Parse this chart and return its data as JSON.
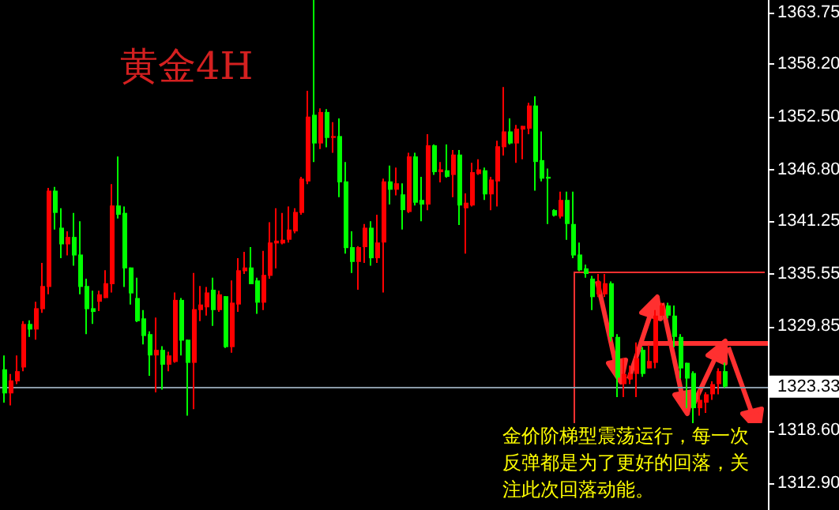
{
  "chart_data": {
    "type": "candlestick",
    "title": "黄金4H",
    "categories": [
      null,
      null,
      null,
      null,
      null,
      null,
      null,
      null,
      null,
      null,
      null,
      null,
      null,
      null,
      null,
      null,
      null,
      null,
      null,
      null,
      null,
      null,
      null,
      null,
      null,
      null,
      null,
      null,
      null,
      null,
      null,
      null,
      null,
      null,
      null,
      null,
      null,
      null,
      null,
      null,
      null,
      null,
      null,
      null,
      null,
      null,
      null,
      null,
      null,
      null,
      null,
      null,
      null,
      null,
      null,
      null,
      null,
      null,
      null,
      null,
      null,
      null,
      null,
      null,
      null,
      null,
      null,
      null,
      null,
      null,
      null,
      null,
      null,
      null,
      null,
      null,
      null,
      null,
      null,
      null,
      null,
      null,
      null,
      null,
      null,
      null,
      null,
      null,
      null,
      null,
      null,
      null,
      null,
      null,
      null,
      null,
      null,
      null,
      null,
      null,
      null,
      null,
      null,
      null,
      null,
      null,
      null,
      null,
      null,
      null,
      null,
      null,
      null,
      null,
      null
    ],
    "ohlc": [
      [
        1325.2,
        1326.7,
        1321.6,
        1322.6
      ],
      [
        1322.6,
        1324.7,
        1321.3,
        1324.0
      ],
      [
        1323.9,
        1326.7,
        1323.6,
        1325.0
      ],
      [
        1325.4,
        1330.4,
        1325.0,
        1330.1
      ],
      [
        1330.1,
        1330.5,
        1328.7,
        1329.5
      ],
      [
        1329.5,
        1332.5,
        1328.4,
        1331.8
      ],
      [
        1331.7,
        1336.7,
        1331.3,
        1334.2
      ],
      [
        1334.1,
        1344.8,
        1333.3,
        1344.5
      ],
      [
        1344.5,
        1344.9,
        1340.3,
        1342.1
      ],
      [
        1340.5,
        1342.6,
        1337.2,
        1338.7
      ],
      [
        1338.7,
        1340.1,
        1337.5,
        1339.5
      ],
      [
        1339.5,
        1342.1,
        1336.4,
        1337.5
      ],
      [
        1337.6,
        1341.2,
        1333.3,
        1334.1
      ],
      [
        1334.2,
        1335.0,
        1329.0,
        1331.7
      ],
      [
        1331.8,
        1333.7,
        1330.1,
        1331.4
      ],
      [
        1332.5,
        1333.7,
        1331.5,
        1333.3
      ],
      [
        1332.9,
        1335.9,
        1332.9,
        1334.5
      ],
      [
        1334.4,
        1345.2,
        1333.5,
        1342.9
      ],
      [
        1342.9,
        1348.2,
        1341.5,
        1341.9
      ],
      [
        1342.1,
        1342.8,
        1334.1,
        1336.1
      ],
      [
        1336.2,
        1336.2,
        1332.2,
        1333.4
      ],
      [
        1332.9,
        1335.1,
        1330.3,
        1330.4
      ],
      [
        1330.7,
        1331.6,
        1327.9,
        1328.8
      ],
      [
        1329.0,
        1329.3,
        1324.5,
        1326.7
      ],
      [
        1326.7,
        1330.8,
        1322.7,
        1327.3
      ],
      [
        1327.3,
        1327.7,
        1323.0,
        1325.7
      ],
      [
        1325.7,
        1327.1,
        1325.0,
        1326.7
      ],
      [
        1326.0,
        1333.5,
        1325.9,
        1332.7
      ],
      [
        1332.7,
        1332.9,
        1326.7,
        1328.3
      ],
      [
        1328.4,
        1328.4,
        1320.2,
        1325.9
      ],
      [
        1325.9,
        1335.6,
        1320.9,
        1331.7
      ],
      [
        1331.6,
        1334.2,
        1330.4,
        1332.2
      ],
      [
        1331.9,
        1334.1,
        1331.0,
        1333.5
      ],
      [
        1333.8,
        1335.1,
        1329.9,
        1331.6
      ],
      [
        1331.6,
        1333.7,
        1331.4,
        1333.3
      ],
      [
        1333.1,
        1333.1,
        1327.5,
        1327.6
      ],
      [
        1327.6,
        1334.8,
        1327.0,
        1332.4
      ],
      [
        1332.2,
        1337.2,
        1331.4,
        1335.9
      ],
      [
        1335.8,
        1337.9,
        1335.5,
        1336.2
      ],
      [
        1336.2,
        1338.4,
        1334.4,
        1334.4
      ],
      [
        1334.8,
        1335.1,
        1331.2,
        1332.4
      ],
      [
        1332.4,
        1338.0,
        1331.6,
        1335.4
      ],
      [
        1335.3,
        1341.1,
        1335.0,
        1338.9
      ],
      [
        1338.8,
        1342.6,
        1336.1,
        1339.1
      ],
      [
        1338.8,
        1342.1,
        1338.7,
        1339.2
      ],
      [
        1339.2,
        1342.8,
        1338.9,
        1340.3
      ],
      [
        1340.1,
        1342.6,
        1339.9,
        1342.2
      ],
      [
        1342.1,
        1346.0,
        1341.9,
        1345.8
      ],
      [
        1345.5,
        1355.3,
        1345.2,
        1352.5
      ],
      [
        1352.7,
        1365.1,
        1347.6,
        1349.6
      ],
      [
        1349.6,
        1353.4,
        1349.0,
        1353.0
      ],
      [
        1353.0,
        1353.3,
        1349.2,
        1350.2
      ],
      [
        1350.2,
        1351.9,
        1348.6,
        1350.4
      ],
      [
        1350.4,
        1352.3,
        1343.8,
        1345.4
      ],
      [
        1345.5,
        1347.6,
        1337.7,
        1338.3
      ],
      [
        1338.4,
        1340.1,
        1335.6,
        1336.8
      ],
      [
        1336.8,
        1338.5,
        1333.8,
        1338.4
      ],
      [
        1338.4,
        1340.9,
        1336.7,
        1340.5
      ],
      [
        1340.5,
        1341.2,
        1336.4,
        1337.2
      ],
      [
        1337.2,
        1341.9,
        1336.7,
        1338.9
      ],
      [
        1338.9,
        1345.8,
        1333.5,
        1345.5
      ],
      [
        1345.5,
        1347.2,
        1343.0,
        1344.6
      ],
      [
        1344.6,
        1347.0,
        1344.0,
        1345.3
      ],
      [
        1344.1,
        1345.3,
        1340.3,
        1342.4
      ],
      [
        1342.2,
        1348.6,
        1342.1,
        1348.2
      ],
      [
        1348.2,
        1348.6,
        1342.9,
        1343.2
      ],
      [
        1343.5,
        1346.0,
        1341.2,
        1343.0
      ],
      [
        1343.0,
        1350.6,
        1342.4,
        1349.4
      ],
      [
        1349.4,
        1349.5,
        1346.2,
        1346.5
      ],
      [
        1346.5,
        1347.6,
        1345.4,
        1346.8
      ],
      [
        1346.7,
        1349.5,
        1345.9,
        1346.0
      ],
      [
        1346.2,
        1348.9,
        1343.8,
        1348.4
      ],
      [
        1348.4,
        1348.9,
        1340.8,
        1342.9
      ],
      [
        1342.6,
        1344.2,
        1337.7,
        1343.2
      ],
      [
        1342.9,
        1347.5,
        1342.8,
        1346.5
      ],
      [
        1346.3,
        1347.9,
        1346.2,
        1346.8
      ],
      [
        1346.7,
        1347.0,
        1343.5,
        1344.1
      ],
      [
        1344.1,
        1346.0,
        1342.4,
        1345.7
      ],
      [
        1345.5,
        1349.9,
        1342.8,
        1349.3
      ],
      [
        1349.2,
        1355.7,
        1348.3,
        1350.9
      ],
      [
        1350.9,
        1352.3,
        1349.5,
        1349.6
      ],
      [
        1349.6,
        1351.6,
        1347.5,
        1351.2
      ],
      [
        1351.1,
        1351.5,
        1347.9,
        1351.5
      ],
      [
        1351.2,
        1354.0,
        1350.6,
        1353.7
      ],
      [
        1353.7,
        1354.7,
        1344.5,
        1347.6
      ],
      [
        1347.8,
        1350.9,
        1345.5,
        1345.8
      ],
      [
        1346.0,
        1346.9,
        1340.9,
        1345.8
      ],
      [
        1342.4,
        1342.5,
        1341.7,
        1341.8
      ],
      [
        1341.7,
        1344.4,
        1341.5,
        1343.5
      ],
      [
        1343.5,
        1344.4,
        1339.2,
        1340.9
      ],
      [
        1340.9,
        1344.4,
        1337.2,
        1337.5
      ],
      [
        1337.6,
        1338.9,
        1335.8,
        1335.9
      ],
      [
        1336.1,
        1336.5,
        1335.1,
        1335.5
      ],
      [
        1335.0,
        1335.3,
        1331.6,
        1333.0
      ],
      [
        1333.3,
        1335.5,
        1333.0,
        1334.7
      ],
      [
        1333.3,
        1335.5,
        1333.0,
        1334.5
      ],
      [
        1334.5,
        1334.7,
        1328.2,
        1328.7
      ],
      [
        1328.7,
        1329.0,
        1322.2,
        1324.3
      ],
      [
        1323.6,
        1326.4,
        1322.2,
        1324.7
      ],
      [
        1324.1,
        1325.6,
        1323.6,
        1324.7
      ],
      [
        1324.7,
        1328.1,
        1322.2,
        1326.4
      ],
      [
        1327.3,
        1327.6,
        1324.4,
        1324.7
      ],
      [
        1325.3,
        1327.8,
        1325.3,
        1326.1
      ],
      [
        1325.9,
        1331.6,
        1325.3,
        1331.0
      ],
      [
        1331.0,
        1332.4,
        1331.0,
        1332.1
      ],
      [
        1332.1,
        1332.4,
        1330.7,
        1331.0
      ],
      [
        1331.0,
        1332.1,
        1327.6,
        1328.7
      ],
      [
        1328.7,
        1329.0,
        1324.2,
        1325.3
      ],
      [
        1325.9,
        1325.9,
        1321.0,
        1324.2
      ],
      [
        1324.8,
        1325.0,
        1319.3,
        1321.0
      ],
      [
        1321.0,
        1323.0,
        1320.2,
        1321.9
      ],
      [
        1321.6,
        1322.7,
        1320.5,
        1322.5
      ],
      [
        1322.5,
        1323.9,
        1321.9,
        1323.6
      ],
      [
        1323.6,
        1325.3,
        1322.5,
        1325.0
      ],
      [
        1325.0,
        1325.9,
        1323.2,
        1323.33
      ]
    ],
    "colors": [
      "#00ff00",
      "#ff0000",
      "#ff0000",
      "#ff0000",
      "#00ff00",
      "#ff0000",
      "#ff0000",
      "#ff0000",
      "#00ff00",
      "#00ff00",
      "#ff0000",
      "#00ff00",
      "#00ff00",
      "#00ff00",
      "#00ff00",
      "#ff0000",
      "#ff0000",
      "#ff0000",
      "#00ff00",
      "#00ff00",
      "#00ff00",
      "#00ff00",
      "#00ff00",
      "#00ff00",
      "#ff0000",
      "#00ff00",
      "#ff0000",
      "#ff0000",
      "#00ff00",
      "#00ff00",
      "#ff0000",
      "#ff0000",
      "#ff0000",
      "#00ff00",
      "#ff0000",
      "#00ff00",
      "#ff0000",
      "#ff0000",
      "#ff0000",
      "#00ff00",
      "#00ff00",
      "#ff0000",
      "#ff0000",
      "#ff0000",
      "#ff0000",
      "#ff0000",
      "#ff0000",
      "#ff0000",
      "#ff0000",
      "#00ff00",
      "#ff0000",
      "#00ff00",
      "#ff0000",
      "#00ff00",
      "#00ff00",
      "#00ff00",
      "#ff0000",
      "#ff0000",
      "#00ff00",
      "#ff0000",
      "#ff0000",
      "#00ff00",
      "#ff0000",
      "#00ff00",
      "#ff0000",
      "#00ff00",
      "#00ff00",
      "#ff0000",
      "#00ff00",
      "#ff0000",
      "#00ff00",
      "#ff0000",
      "#00ff00",
      "#ff0000",
      "#ff0000",
      "#ff0000",
      "#00ff00",
      "#ff0000",
      "#ff0000",
      "#ff0000",
      "#00ff00",
      "#ff0000",
      "#ff0000",
      "#ff0000",
      "#00ff00",
      "#00ff00",
      "#00ff00",
      "#00ff00",
      "#ff0000",
      "#00ff00",
      "#00ff00",
      "#00ff00",
      "#00ff00",
      "#00ff00",
      "#ff0000",
      "#ff0000",
      "#00ff00",
      "#00ff00",
      "#ff0000",
      "#ff0000",
      "#ff0000",
      "#00ff00",
      "#ff0000",
      "#ff0000",
      "#ff0000",
      "#00ff00",
      "#00ff00",
      "#00ff00",
      "#00ff00",
      "#00ff00",
      "#ff0000",
      "#ff0000",
      "#ff0000",
      "#ff0000",
      "#00ff00"
    ],
    "ylim": [
      1310.0,
      1365.1
    ],
    "yticks": [
      1363.75,
      {
        "value": 1358.2,
        "label": "1358.20"
      },
      {
        "value": 1352.5,
        "label": "1352.50"
      },
      {
        "value": 1346.8,
        "label": "1346.80"
      },
      1341.25,
      1335.55,
      1329.85,
      {
        "value": 1318.6,
        "label": "1318.60"
      },
      {
        "value": 1312.9,
        "label": "1312.90"
      }
    ],
    "ref_lines": [
      {
        "axis": "y",
        "value": 1323.33,
        "label": "1323.33",
        "color": "#8a9aa8"
      },
      {
        "axis": "y",
        "value": 1328.1,
        "color": "#ff3030"
      }
    ],
    "annotations": [
      "金价阶梯型震荡运行，每一次反弹都是为了更好的回落，关注此次回落动能。"
    ]
  }
}
